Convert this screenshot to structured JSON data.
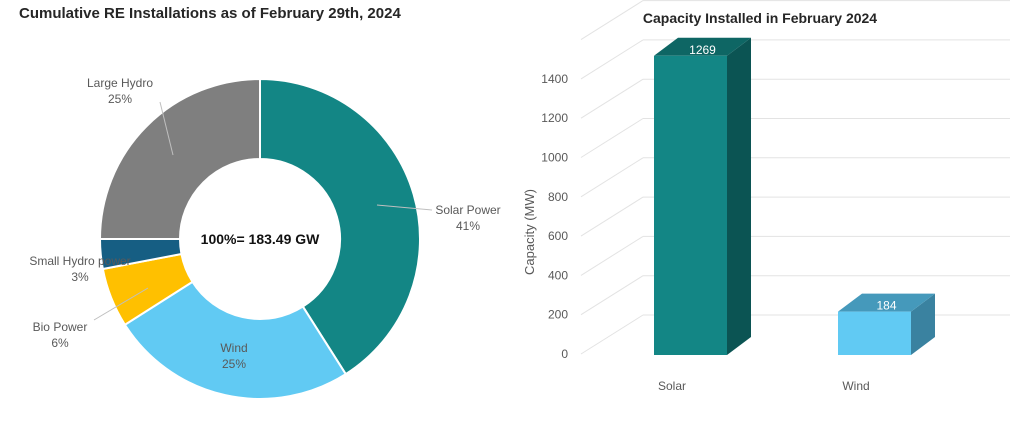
{
  "chart_data": [
    {
      "type": "pie",
      "variant": "donut",
      "title": "Cumulative RE Installations as of February 29th, 2024",
      "center_label": "100%= 183.49 GW",
      "slices": [
        {
          "label": "Solar Power",
          "percent_label": "41%",
          "value": 41,
          "color": "#138685"
        },
        {
          "label": "Wind",
          "percent_label": "25%",
          "value": 25,
          "color": "#61CAF3"
        },
        {
          "label": "Bio Power",
          "percent_label": "6%",
          "value": 6,
          "color": "#FFC000"
        },
        {
          "label": "Small Hydro power",
          "percent_label": "3%",
          "value": 3,
          "color": "#165E83"
        },
        {
          "label": "Large Hydro",
          "percent_label": "25%",
          "value": 25,
          "color": "#7F7F7F"
        }
      ]
    },
    {
      "type": "bar",
      "variant": "3d-column",
      "title": "Capacity Installed in February 2024",
      "ylabel": "Capacity (MW)",
      "xlabel": "",
      "ylim": [
        0,
        1600
      ],
      "yticks": [
        "0",
        "200",
        "400",
        "600",
        "800",
        "1000",
        "1200",
        "1400"
      ],
      "grid": true,
      "categories": [
        "Solar",
        "Wind"
      ],
      "values": [
        1269,
        184
      ],
      "value_labels": [
        "1269",
        "184"
      ],
      "colors": [
        {
          "front": "#138685",
          "top": "#0E6664",
          "side": "#0B5453"
        },
        {
          "front": "#61CAF3",
          "top": "#4599BB",
          "side": "#3A82A0"
        }
      ]
    }
  ]
}
